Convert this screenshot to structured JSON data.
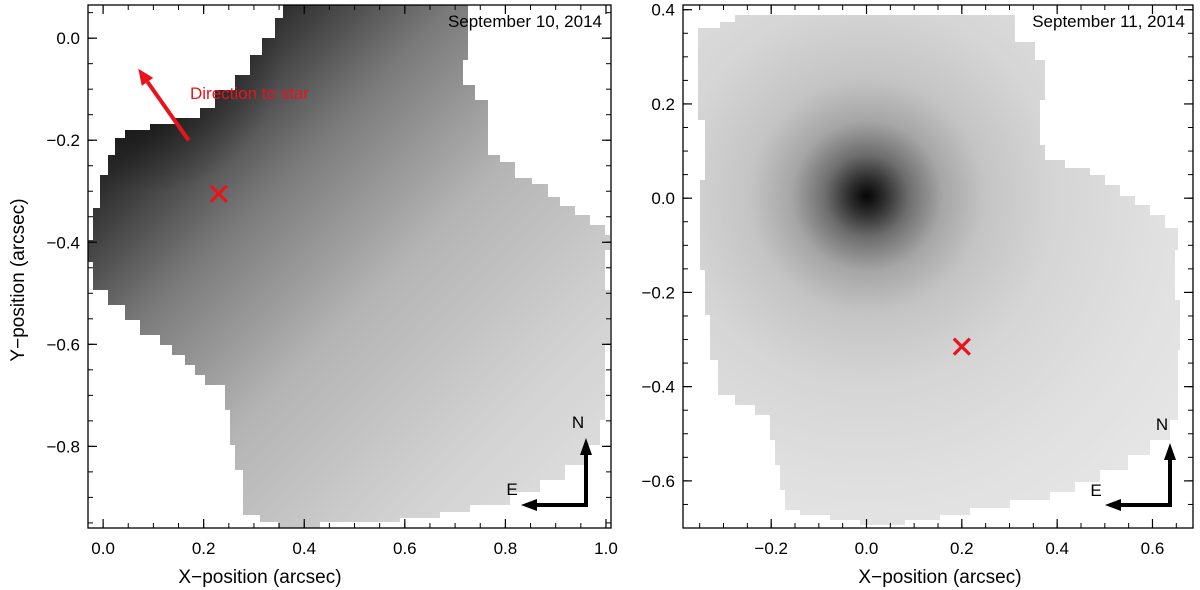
{
  "chart_data": [
    {
      "type": "heatmap",
      "date_label": "September 10, 2014",
      "xlabel": "X−position (arcsec)",
      "ylabel": "Y−position (arcsec)",
      "xlim": [
        -0.03,
        1.01
      ],
      "ylim": [
        -0.96,
        0.065
      ],
      "x_ticks": [
        0.0,
        0.2,
        0.4,
        0.6,
        0.8,
        1.0
      ],
      "x_tick_labels": [
        "0.0",
        "0.2",
        "0.4",
        "0.6",
        "0.8",
        "1.0"
      ],
      "y_ticks": [
        -0.8,
        -0.6,
        -0.4,
        -0.2,
        0.0
      ],
      "y_tick_labels": [
        "−0.8",
        "−0.6",
        "−0.4",
        "−0.2",
        "0.0"
      ],
      "colormap": "grayscale (dark = bright emission)",
      "darkest_region": "upper-left",
      "marker": {
        "symbol": "x",
        "x": 0.23,
        "y": -0.305,
        "color": "#e8141c"
      },
      "annotation": {
        "text": "Direction to star",
        "color": "#e8141c",
        "arrow_from": [
          0.17,
          -0.2
        ],
        "arrow_to": [
          0.07,
          -0.06
        ]
      },
      "compass": {
        "north": "N",
        "east": "E"
      }
    },
    {
      "type": "heatmap",
      "date_label": "September 11, 2014",
      "xlabel": "X−position (arcsec)",
      "ylabel": "",
      "xlim": [
        -0.385,
        0.685
      ],
      "ylim": [
        -0.7,
        0.41
      ],
      "x_ticks": [
        -0.2,
        0.0,
        0.2,
        0.4,
        0.6
      ],
      "x_tick_labels": [
        "−0.2",
        "0.0",
        "0.2",
        "0.4",
        "0.6"
      ],
      "y_ticks": [
        -0.6,
        -0.4,
        -0.2,
        0.0,
        0.2,
        0.4
      ],
      "y_tick_labels": [
        "−0.6",
        "−0.4",
        "−0.2",
        "0.0",
        "0.2",
        "0.4"
      ],
      "colormap": "grayscale (dark = bright emission)",
      "peak_position": [
        0.0,
        0.0
      ],
      "marker": {
        "symbol": "x",
        "x": 0.2,
        "y": -0.315,
        "color": "#e8141c"
      },
      "compass": {
        "north": "N",
        "east": "E"
      }
    }
  ]
}
